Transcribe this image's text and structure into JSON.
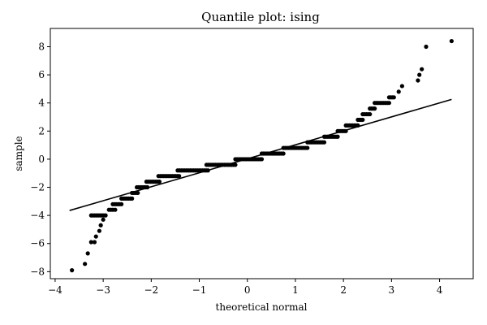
{
  "chart_data": {
    "type": "scatter",
    "title": "Quantile plot: ising",
    "xlabel": "theoretical normal",
    "ylabel": "sample",
    "xlim": [
      -4.1,
      4.7
    ],
    "ylim": [
      -8.5,
      9.3
    ],
    "xticks": [
      -4,
      -3,
      -2,
      -1,
      0,
      1,
      2,
      3,
      4
    ],
    "xtick_labels": [
      "−4",
      "−3",
      "−2",
      "−1",
      "0",
      "1",
      "2",
      "3",
      "4"
    ],
    "yticks": [
      -8,
      -6,
      -4,
      -2,
      0,
      2,
      4,
      6,
      8
    ],
    "ytick_labels": [
      "−8",
      "−6",
      "−4",
      "−2",
      "0",
      "2",
      "4",
      "6",
      "8"
    ],
    "grid": false,
    "reference_line": {
      "x": [
        -3.7,
        4.25
      ],
      "y": [
        -3.65,
        4.25
      ]
    },
    "steps": [
      {
        "y": -0.4,
        "x_from": -0.85,
        "x_to": -0.25
      },
      {
        "y": -0.8,
        "x_from": -1.45,
        "x_to": -0.82
      },
      {
        "y": -1.2,
        "x_from": -1.85,
        "x_to": -1.42
      },
      {
        "y": -1.6,
        "x_from": -2.1,
        "x_to": -1.83
      },
      {
        "y": -2.0,
        "x_from": -2.3,
        "x_to": -2.08
      },
      {
        "y": -2.4,
        "x_from": -2.4,
        "x_to": -2.28
      },
      {
        "y": -2.8,
        "x_from": -2.62,
        "x_to": -2.4
      },
      {
        "y": -3.2,
        "x_from": -2.8,
        "x_to": -2.62
      },
      {
        "y": -3.6,
        "x_from": -2.88,
        "x_to": -2.8
      },
      {
        "y": -4.0,
        "x_from": -3.25,
        "x_to": -2.95
      },
      {
        "y": 0.0,
        "x_from": -0.25,
        "x_to": 0.3
      },
      {
        "y": 0.4,
        "x_from": 0.3,
        "x_to": 0.75
      },
      {
        "y": 0.8,
        "x_from": 0.75,
        "x_to": 1.25
      },
      {
        "y": 1.2,
        "x_from": 1.25,
        "x_to": 1.6
      },
      {
        "y": 1.6,
        "x_from": 1.6,
        "x_to": 1.88
      },
      {
        "y": 2.0,
        "x_from": 1.88,
        "x_to": 2.05
      },
      {
        "y": 2.4,
        "x_from": 2.05,
        "x_to": 2.3
      },
      {
        "y": 2.8,
        "x_from": 2.3,
        "x_to": 2.4
      },
      {
        "y": 3.2,
        "x_from": 2.4,
        "x_to": 2.55
      },
      {
        "y": 3.6,
        "x_from": 2.55,
        "x_to": 2.65
      },
      {
        "y": 4.0,
        "x_from": 2.65,
        "x_to": 2.95
      },
      {
        "y": 4.4,
        "x_from": 2.95,
        "x_to": 3.05
      }
    ],
    "tail_points": [
      {
        "x": -3.65,
        "y": -7.9
      },
      {
        "x": -3.38,
        "y": -7.45
      },
      {
        "x": -3.32,
        "y": -6.7
      },
      {
        "x": -3.25,
        "y": -5.9
      },
      {
        "x": -3.18,
        "y": -5.9
      },
      {
        "x": -3.15,
        "y": -5.5
      },
      {
        "x": -3.08,
        "y": -5.1
      },
      {
        "x": -3.05,
        "y": -4.7
      },
      {
        "x": -3.0,
        "y": -4.3
      },
      {
        "x": -2.75,
        "y": -3.6
      },
      {
        "x": 3.15,
        "y": 4.8
      },
      {
        "x": 3.22,
        "y": 5.2
      },
      {
        "x": 3.55,
        "y": 5.6
      },
      {
        "x": 3.58,
        "y": 6.0
      },
      {
        "x": 3.63,
        "y": 6.4
      },
      {
        "x": 3.72,
        "y": 8.0
      },
      {
        "x": 4.25,
        "y": 8.4
      }
    ],
    "colors": {
      "points": "#000000",
      "line": "#000000",
      "axes": "#000000"
    }
  }
}
